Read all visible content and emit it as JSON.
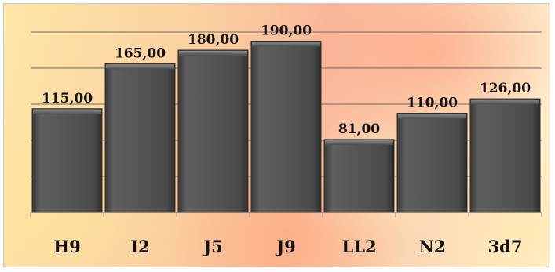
{
  "chart_data": {
    "type": "bar",
    "categories": [
      "H9",
      "I2",
      "J5",
      "J9",
      "LL2",
      "N2",
      "3d7"
    ],
    "values": [
      115,
      165,
      180,
      190,
      81,
      110,
      126
    ],
    "value_labels": [
      "115,00",
      "165,00",
      "180,00",
      "190,00",
      "81,00",
      "110,00",
      "126,00"
    ],
    "title": "",
    "xlabel": "",
    "ylabel": "",
    "ylim": [
      0,
      200
    ],
    "grid": true,
    "legend": "none",
    "colors": {
      "bar": "#5b5b5b",
      "bar_edge": "#2e2e2e",
      "grid": "#6e6e6e"
    }
  }
}
